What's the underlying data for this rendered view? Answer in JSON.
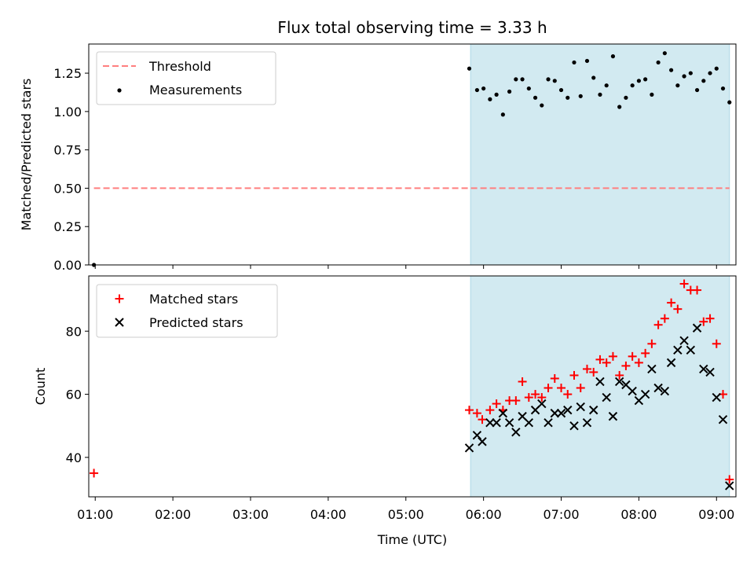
{
  "chart_data": [
    {
      "type": "scatter",
      "title": "Flux total observing time = 3.33 h",
      "xlabel": "",
      "ylabel": "Matched/Predicted stars",
      "ylim": [
        0,
        1.44
      ],
      "yticks": [
        "0.00",
        "0.25",
        "0.50",
        "0.75",
        "1.00",
        "1.25"
      ],
      "yticks_values": [
        0,
        0.25,
        0.5,
        0.75,
        1.0,
        1.25
      ],
      "legend_position": "upper-left",
      "shaded_region": {
        "start": "05:50",
        "end": "09:10",
        "color": "#add8e6"
      },
      "series": [
        {
          "name": "Threshold",
          "kind": "line",
          "style": "dashed",
          "color": "#ff7f7f",
          "x": [
            "00:59",
            "09:10"
          ],
          "y": [
            0.5,
            0.5
          ]
        },
        {
          "name": "Measurements",
          "kind": "scatter",
          "marker": "dot",
          "color": "#000000",
          "x": [
            "00:59",
            "05:49",
            "05:55",
            "06:00",
            "06:05",
            "06:10",
            "06:15",
            "06:20",
            "06:25",
            "06:30",
            "06:35",
            "06:40",
            "06:45",
            "06:50",
            "06:55",
            "07:00",
            "07:05",
            "07:10",
            "07:15",
            "07:20",
            "07:25",
            "07:30",
            "07:35",
            "07:40",
            "07:45",
            "07:50",
            "07:55",
            "08:00",
            "08:05",
            "08:10",
            "08:15",
            "08:20",
            "08:25",
            "08:30",
            "08:35",
            "08:40",
            "08:45",
            "08:50",
            "08:55",
            "09:00",
            "09:05",
            "09:10"
          ],
          "y": [
            0.0,
            1.28,
            1.14,
            1.15,
            1.08,
            1.11,
            0.98,
            1.13,
            1.21,
            1.21,
            1.15,
            1.09,
            1.04,
            1.21,
            1.2,
            1.14,
            1.09,
            1.32,
            1.1,
            1.33,
            1.22,
            1.11,
            1.17,
            1.36,
            1.03,
            1.09,
            1.17,
            1.2,
            1.21,
            1.11,
            1.32,
            1.38,
            1.27,
            1.17,
            1.23,
            1.25,
            1.14,
            1.2,
            1.25,
            1.28,
            1.15,
            1.06
          ]
        }
      ]
    },
    {
      "type": "scatter",
      "title": "",
      "xlabel": "Time (UTC)",
      "ylabel": "Count",
      "ylim": [
        27.5,
        97.5
      ],
      "yticks": [
        "40",
        "60",
        "80"
      ],
      "yticks_values": [
        40,
        60,
        80
      ],
      "xticks": [
        "01:00",
        "02:00",
        "03:00",
        "04:00",
        "05:00",
        "06:00",
        "07:00",
        "08:00",
        "09:00"
      ],
      "legend_position": "upper-left",
      "shaded_region": {
        "start": "05:50",
        "end": "09:10",
        "color": "#add8e6"
      },
      "series": [
        {
          "name": "Matched stars",
          "kind": "scatter",
          "marker": "plus",
          "color": "#ff0000",
          "x": [
            "00:59",
            "05:49",
            "05:55",
            "05:59",
            "06:05",
            "06:10",
            "06:15",
            "06:20",
            "06:25",
            "06:30",
            "06:35",
            "06:40",
            "06:45",
            "06:50",
            "06:55",
            "07:00",
            "07:05",
            "07:10",
            "07:15",
            "07:20",
            "07:25",
            "07:30",
            "07:35",
            "07:40",
            "07:45",
            "07:50",
            "07:55",
            "08:00",
            "08:05",
            "08:10",
            "08:15",
            "08:20",
            "08:25",
            "08:30",
            "08:35",
            "08:40",
            "08:45",
            "08:50",
            "08:55",
            "09:00",
            "09:05",
            "09:10"
          ],
          "y": [
            35,
            55,
            54,
            52,
            55,
            57,
            55,
            58,
            58,
            64,
            59,
            60,
            59,
            62,
            65,
            62,
            60,
            66,
            62,
            68,
            67,
            71,
            70,
            72,
            66,
            69,
            72,
            70,
            73,
            76,
            82,
            84,
            89,
            87,
            95,
            93,
            93,
            83,
            84,
            76,
            60,
            33
          ]
        },
        {
          "name": "Predicted stars",
          "kind": "scatter",
          "marker": "x",
          "color": "#000000",
          "x": [
            "05:49",
            "05:55",
            "05:59",
            "06:05",
            "06:10",
            "06:15",
            "06:20",
            "06:25",
            "06:30",
            "06:35",
            "06:40",
            "06:45",
            "06:50",
            "06:55",
            "07:00",
            "07:05",
            "07:10",
            "07:15",
            "07:20",
            "07:25",
            "07:30",
            "07:35",
            "07:40",
            "07:45",
            "07:50",
            "07:55",
            "08:00",
            "08:05",
            "08:10",
            "08:15",
            "08:20",
            "08:25",
            "08:30",
            "08:35",
            "08:40",
            "08:45",
            "08:50",
            "08:55",
            "09:00",
            "09:05",
            "09:10"
          ],
          "y": [
            43,
            47,
            45,
            51,
            51,
            54,
            51,
            48,
            53,
            51,
            55,
            57,
            51,
            54,
            54,
            55,
            50,
            56,
            51,
            55,
            64,
            59,
            53,
            64,
            63,
            61,
            58,
            60,
            68,
            62,
            61,
            70,
            74,
            77,
            74,
            81,
            68,
            67,
            59,
            52,
            31
          ]
        }
      ]
    }
  ]
}
